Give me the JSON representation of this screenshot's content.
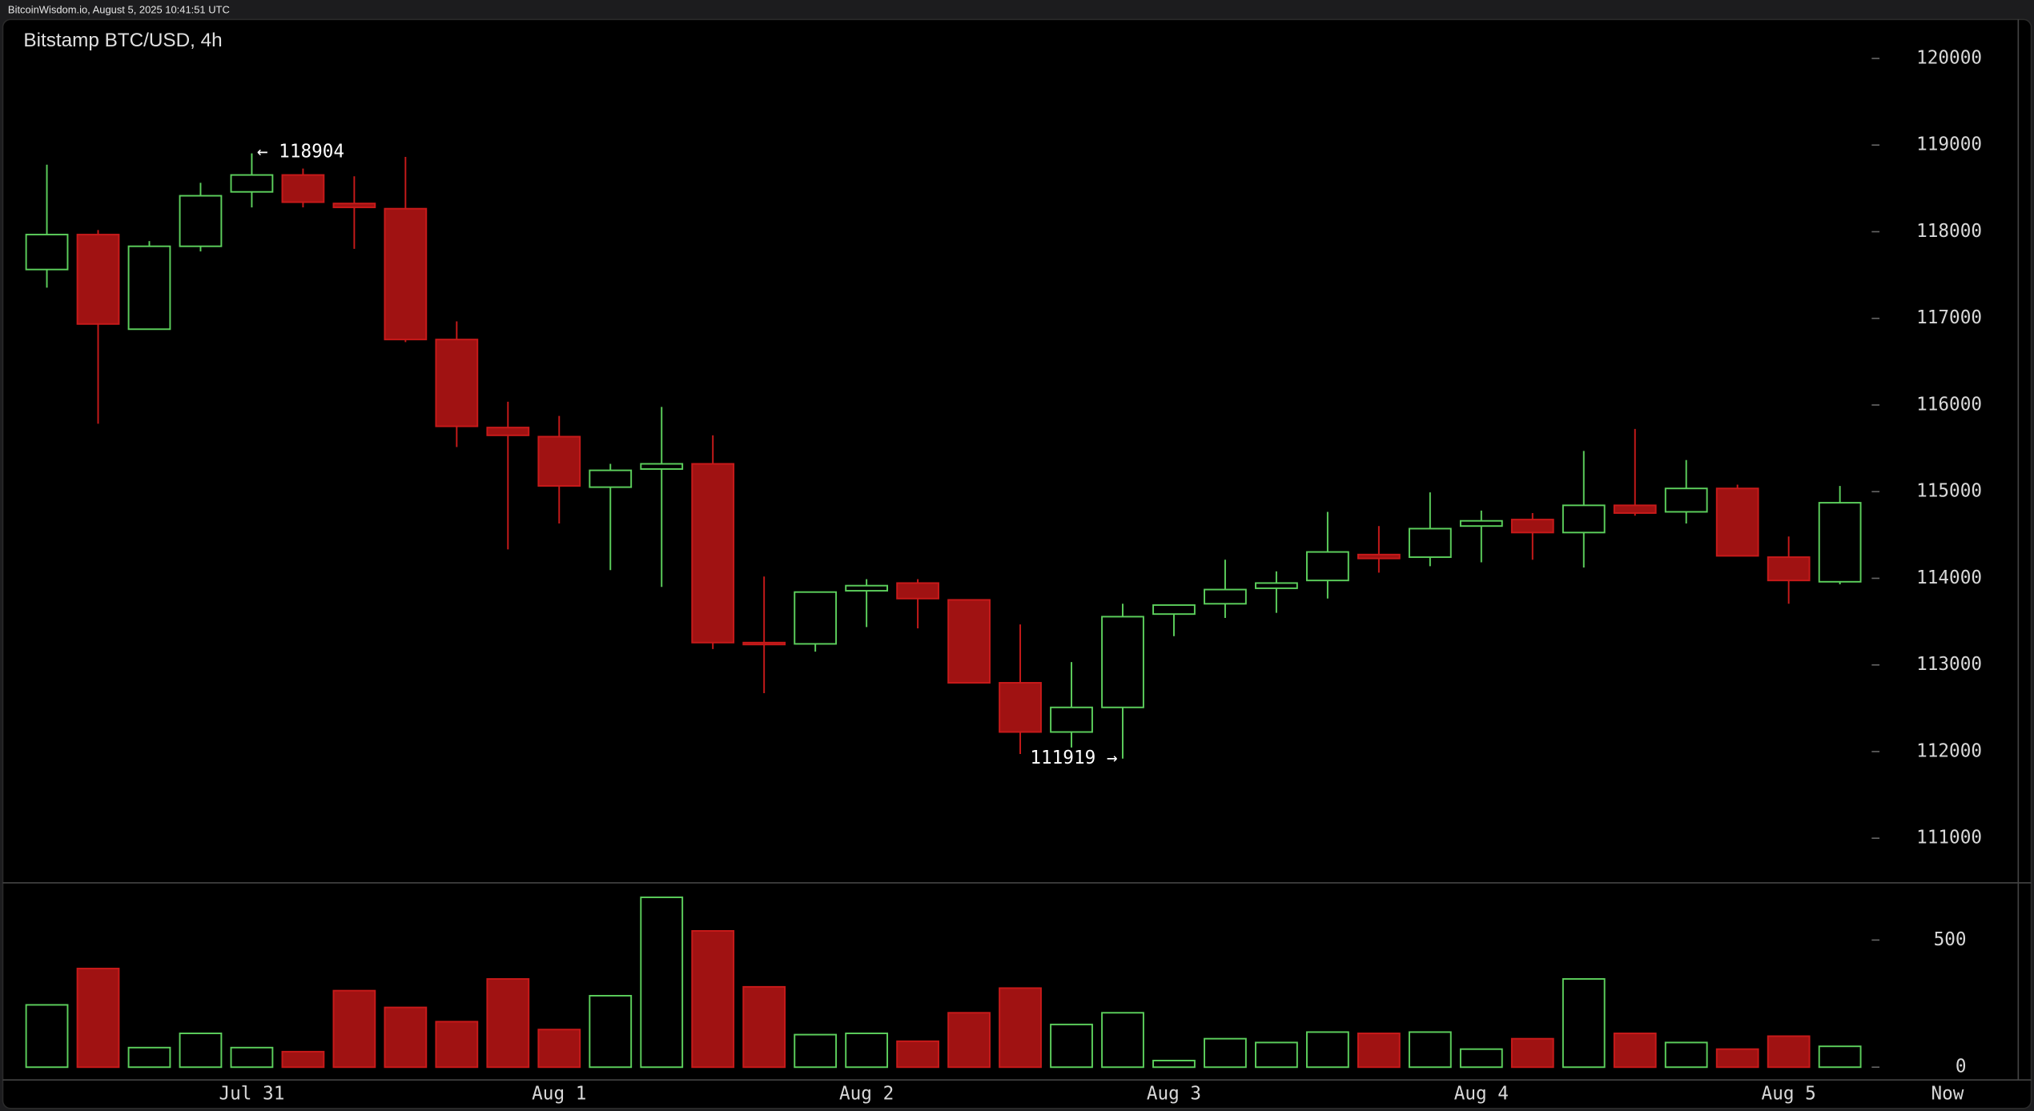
{
  "header": "BitcoinWisdom.io, August 5, 2025 10:41:51 UTC",
  "chart_data": [
    {
      "type": "candlestick",
      "title": "Bitstamp BTC/USD, 4h",
      "categories": [
        null,
        null,
        null,
        null,
        "Jul 31",
        null,
        null,
        null,
        null,
        null,
        "Aug 1",
        null,
        null,
        null,
        null,
        null,
        "Aug 2",
        null,
        null,
        null,
        null,
        null,
        "Aug 3",
        null,
        null,
        null,
        null,
        null,
        "Aug 4",
        null,
        null,
        null,
        null,
        null,
        "Aug 5",
        null
      ],
      "now_label": "Now",
      "open": [
        117564,
        117967,
        116875,
        117832,
        118460,
        118655,
        118326,
        118266,
        116756,
        115740,
        115635,
        115052,
        115261,
        115321,
        113258,
        113243,
        113856,
        113945,
        113751,
        112794,
        112226,
        112510,
        113587,
        113706,
        113885,
        113975,
        114274,
        114244,
        114603,
        114678,
        114528,
        114842,
        114767,
        115037,
        114244,
        113960
      ],
      "high": [
        118774,
        118020,
        117892,
        118565,
        118904,
        118729,
        118640,
        118864,
        116965,
        116038,
        115874,
        115321,
        115978,
        115650,
        114020,
        113841,
        113990,
        113990,
        113751,
        113467,
        113033,
        113707,
        113691,
        114214,
        114080,
        114767,
        114603,
        114992,
        114782,
        114753,
        115470,
        115724,
        115365,
        115081,
        114483,
        115066
      ],
      "low": [
        117354,
        115784,
        116875,
        117772,
        118281,
        118281,
        117802,
        116726,
        115515,
        114334,
        114633,
        114095,
        113900,
        113183,
        112674,
        113153,
        113437,
        113422,
        112794,
        111972,
        112047,
        111919,
        113332,
        113542,
        113601,
        113766,
        114065,
        114140,
        114184,
        114214,
        114125,
        114723,
        114633,
        114259,
        113706,
        113930
      ],
      "close": [
        117967,
        116935,
        117832,
        118415,
        118655,
        118341,
        118281,
        116756,
        115754,
        115650,
        115066,
        115246,
        115321,
        113258,
        113243,
        113841,
        113915,
        113766,
        112794,
        112226,
        112510,
        113557,
        113691,
        113870,
        113945,
        114304,
        114229,
        114573,
        114663,
        114528,
        114842,
        114753,
        115037,
        114259,
        113975,
        114872
      ],
      "annotations": [
        "← 118904",
        "111919 →"
      ],
      "up_color": "#5ccf5c",
      "down_color": "#a01212",
      "ylim": [
        110500,
        120450
      ],
      "yticks": [
        111000,
        112000,
        113000,
        114000,
        115000,
        116000,
        117000,
        118000,
        119000,
        120000
      ]
    },
    {
      "type": "bar",
      "values": [
        245,
        388,
        77,
        133,
        77,
        61,
        301,
        235,
        179,
        347,
        148,
        281,
        668,
        536,
        316,
        128,
        133,
        102,
        214,
        311,
        168,
        214,
        26,
        112,
        97,
        138,
        133,
        138,
        71,
        112,
        347,
        133,
        97,
        71,
        122,
        82
      ],
      "ylim": [
        -50,
        725
      ],
      "yticks": [
        0,
        500
      ]
    }
  ]
}
